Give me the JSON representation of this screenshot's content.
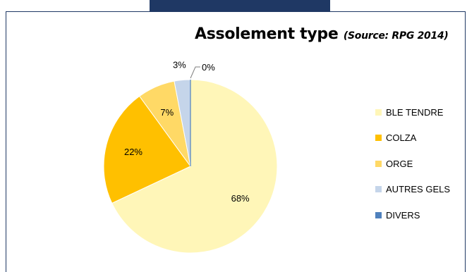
{
  "chart_data": {
    "type": "pie",
    "title": "Assolement type",
    "subtitle": "(Source: RPG 2014)",
    "categories": [
      "BLE TENDRE",
      "COLZA",
      "ORGE",
      "AUTRES GELS",
      "DIVERS"
    ],
    "values": [
      68,
      22,
      7,
      3,
      0
    ],
    "data_labels": [
      "68%",
      "22%",
      "7%",
      "3%",
      "0%"
    ],
    "colors": [
      "#fff6b8",
      "#ffc000",
      "#ffd966",
      "#c5d5ea",
      "#4f81bd"
    ],
    "legend_position": "right"
  }
}
